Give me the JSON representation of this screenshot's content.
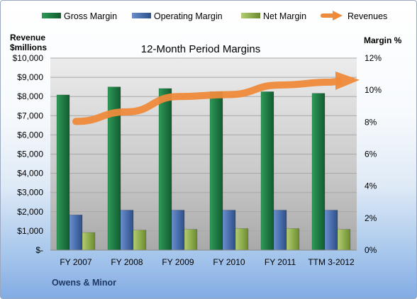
{
  "chart_data": {
    "type": "bar",
    "title": "12-Month Period Margins",
    "categories": [
      "FY 2007",
      "FY 2008",
      "FY 2009",
      "FY 2010",
      "FY 2011",
      "TTM 3-2012"
    ],
    "series": [
      {
        "name": "Gross Margin",
        "axis": "right",
        "kind": "bar",
        "color": "#1f7a43",
        "values": [
          9.7,
          10.2,
          10.1,
          9.9,
          9.9,
          9.8
        ]
      },
      {
        "name": "Operating Margin",
        "axis": "right",
        "kind": "bar",
        "color": "#4a6fae",
        "values": [
          2.2,
          2.5,
          2.5,
          2.5,
          2.5,
          2.5
        ]
      },
      {
        "name": "Net Margin",
        "axis": "right",
        "kind": "bar",
        "color": "#8fae4e",
        "values": [
          1.1,
          1.25,
          1.3,
          1.35,
          1.35,
          1.3
        ]
      },
      {
        "name": "Revenues",
        "axis": "left",
        "kind": "line",
        "color": "#ee8a3b",
        "values": [
          6700,
          7200,
          8000,
          8100,
          8600,
          8750
        ]
      }
    ],
    "left_axis": {
      "label": "Revenue $millions",
      "ylim": [
        0,
        10000
      ],
      "ticks": [
        {
          "v": 0,
          "t": "$-"
        },
        {
          "v": 1000,
          "t": "$1,000"
        },
        {
          "v": 2000,
          "t": "$2,000"
        },
        {
          "v": 3000,
          "t": "$3,000"
        },
        {
          "v": 4000,
          "t": "$4,000"
        },
        {
          "v": 5000,
          "t": "$5,000"
        },
        {
          "v": 6000,
          "t": "$6,000"
        },
        {
          "v": 7000,
          "t": "$7,000"
        },
        {
          "v": 8000,
          "t": "$8,000"
        },
        {
          "v": 9000,
          "t": "$9,000"
        },
        {
          "v": 10000,
          "t": "$10,000"
        }
      ]
    },
    "right_axis": {
      "label": "Margin %",
      "ylim": [
        0,
        12
      ],
      "ticks": [
        {
          "v": 0,
          "t": "0%"
        },
        {
          "v": 2,
          "t": "2%"
        },
        {
          "v": 4,
          "t": "4%"
        },
        {
          "v": 6,
          "t": "6%"
        },
        {
          "v": 8,
          "t": "8%"
        },
        {
          "v": 10,
          "t": "10%"
        },
        {
          "v": 12,
          "t": "12%"
        }
      ]
    },
    "legend_position": "top",
    "grid": true
  },
  "company": "Owens & Minor"
}
